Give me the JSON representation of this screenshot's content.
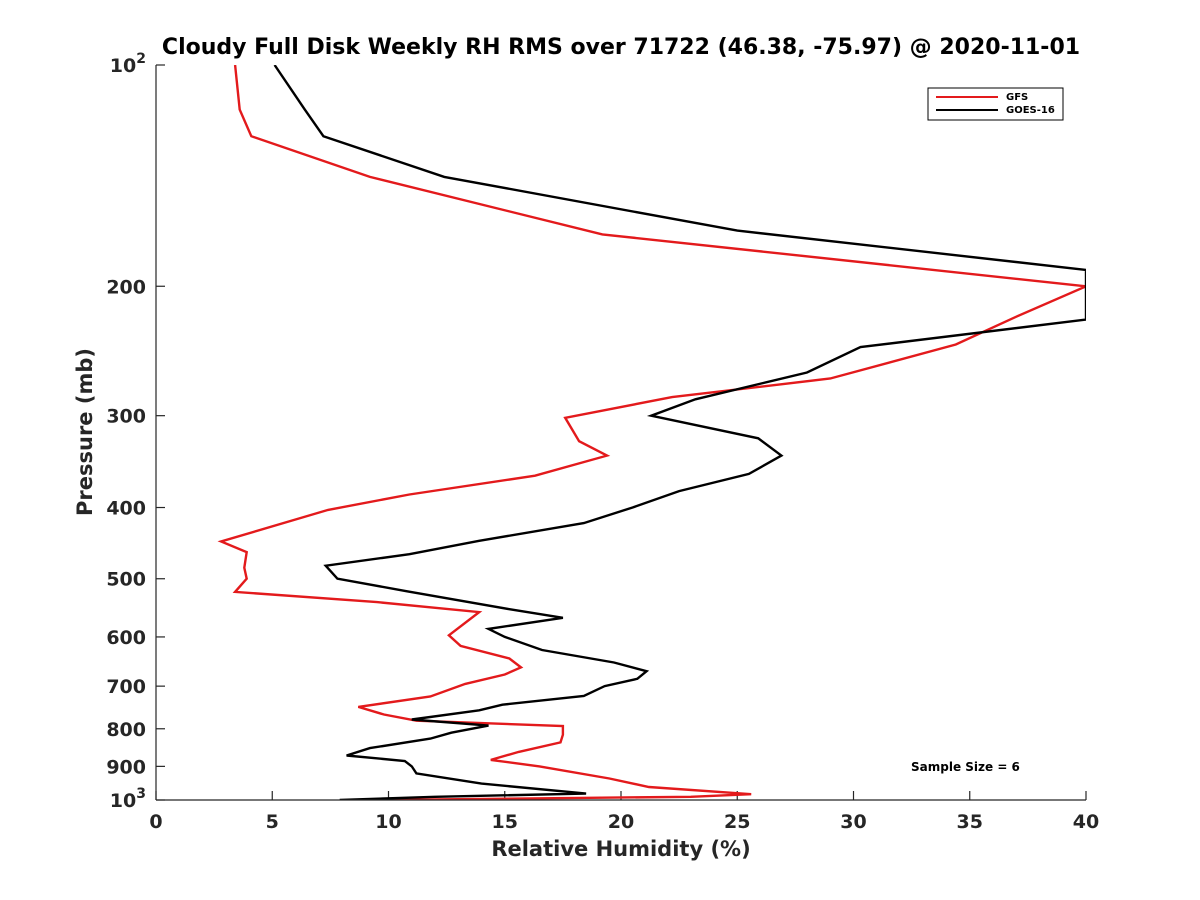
{
  "chart_data": {
    "type": "line",
    "title": "Cloudy Full Disk Weekly RH RMS over 71722 (46.38, -75.97) @ 2020-11-01",
    "xlabel": "Relative Humidity (%)",
    "ylabel": "Pressure (mb)",
    "xlim": [
      0,
      40
    ],
    "ylim": [
      100,
      1000
    ],
    "yscale": "log",
    "y_reversed": true,
    "x_ticks": [
      0,
      5,
      10,
      15,
      20,
      25,
      30,
      35,
      40
    ],
    "x_tick_labels": [
      "0",
      "5",
      "10",
      "15",
      "20",
      "25",
      "30",
      "35",
      "40"
    ],
    "y_ticks": [
      100,
      200,
      300,
      400,
      500,
      600,
      700,
      800,
      900,
      1000
    ],
    "y_tick_labels": [
      {
        "base": "10",
        "exp": "2"
      },
      {
        "text": "200"
      },
      {
        "text": "300"
      },
      {
        "text": "400"
      },
      {
        "text": "500"
      },
      {
        "text": "600"
      },
      {
        "text": "700"
      },
      {
        "text": "800"
      },
      {
        "text": "900"
      },
      {
        "base": "10",
        "exp": "3"
      }
    ],
    "legend_position": "top-right",
    "annotation": "Sample Size = 6",
    "series": [
      {
        "name": "GFS",
        "color": "#e31a1c",
        "points": [
          [
            3.4,
            100
          ],
          [
            3.6,
            115
          ],
          [
            4.1,
            125
          ],
          [
            9.2,
            142
          ],
          [
            19.2,
            170
          ],
          [
            40.0,
            200
          ],
          [
            37.0,
            220
          ],
          [
            34.4,
            240
          ],
          [
            29.0,
            267
          ],
          [
            22.2,
            283
          ],
          [
            17.6,
            302
          ],
          [
            18.2,
            325
          ],
          [
            19.4,
            340
          ],
          [
            16.3,
            362
          ],
          [
            10.9,
            384
          ],
          [
            7.4,
            403
          ],
          [
            2.8,
            445
          ],
          [
            3.9,
            460
          ],
          [
            3.8,
            483
          ],
          [
            3.9,
            500
          ],
          [
            3.4,
            521
          ],
          [
            9.5,
            538
          ],
          [
            13.9,
            555
          ],
          [
            12.6,
            597
          ],
          [
            13.1,
            617
          ],
          [
            15.2,
            642
          ],
          [
            15.7,
            660
          ],
          [
            15.0,
            675
          ],
          [
            13.3,
            695
          ],
          [
            11.8,
            723
          ],
          [
            8.7,
            747
          ],
          [
            9.8,
            765
          ],
          [
            11.2,
            780
          ],
          [
            17.5,
            793
          ],
          [
            17.5,
            815
          ],
          [
            17.4,
            835
          ],
          [
            15.6,
            860
          ],
          [
            14.4,
            882
          ],
          [
            16.5,
            900
          ],
          [
            19.5,
            935
          ],
          [
            21.2,
            960
          ],
          [
            25.6,
            982
          ],
          [
            23.0,
            990
          ],
          [
            9.5,
            1000
          ]
        ]
      },
      {
        "name": "GOES-16",
        "color": "#000000",
        "points": [
          [
            5.1,
            100
          ],
          [
            6.4,
            115
          ],
          [
            7.2,
            125
          ],
          [
            12.4,
            142
          ],
          [
            25.0,
            168
          ],
          [
            40.0,
            190
          ],
          [
            40.0,
            222
          ],
          [
            30.3,
            242
          ],
          [
            28.0,
            262
          ],
          [
            23.2,
            285
          ],
          [
            21.3,
            300
          ],
          [
            25.9,
            322
          ],
          [
            26.9,
            340
          ],
          [
            25.5,
            360
          ],
          [
            22.5,
            380
          ],
          [
            20.5,
            400
          ],
          [
            18.4,
            420
          ],
          [
            13.9,
            444
          ],
          [
            10.9,
            463
          ],
          [
            7.3,
            480
          ],
          [
            7.8,
            500
          ],
          [
            10.8,
            520
          ],
          [
            15.2,
            550
          ],
          [
            17.5,
            565
          ],
          [
            14.3,
            585
          ],
          [
            15.0,
            600
          ],
          [
            16.6,
            625
          ],
          [
            19.7,
            650
          ],
          [
            21.1,
            668
          ],
          [
            20.7,
            684
          ],
          [
            19.3,
            700
          ],
          [
            18.4,
            722
          ],
          [
            14.9,
            742
          ],
          [
            13.9,
            755
          ],
          [
            11.0,
            777
          ],
          [
            14.3,
            792
          ],
          [
            12.7,
            810
          ],
          [
            11.8,
            825
          ],
          [
            9.2,
            850
          ],
          [
            8.2,
            870
          ],
          [
            10.7,
            885
          ],
          [
            11.0,
            900
          ],
          [
            11.2,
            920
          ],
          [
            14.0,
            950
          ],
          [
            18.5,
            980
          ],
          [
            12.0,
            990
          ],
          [
            7.9,
            1000
          ]
        ]
      }
    ]
  }
}
